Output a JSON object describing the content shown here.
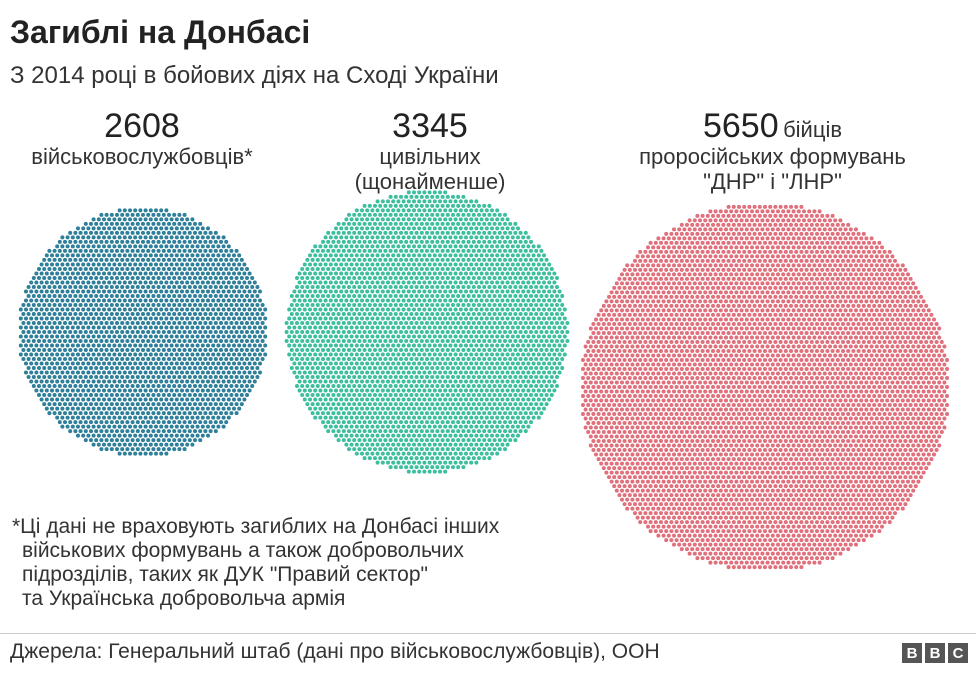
{
  "header": {
    "title": "Загиблі на Донбасі",
    "subtitle": "З 2014 році в бойових діях на Сході України"
  },
  "chart_data": {
    "type": "proportional-dot-circles",
    "series": [
      {
        "value": 2608,
        "value_text": "2608",
        "unit": "",
        "label_lines": [
          "військовослужбовців*"
        ],
        "color": "#2e7f99"
      },
      {
        "value": 3345,
        "value_text": "3345",
        "unit": "",
        "label_lines": [
          "цивільних",
          "(щонайменше)"
        ],
        "color": "#3dbf9f"
      },
      {
        "value": 5650,
        "value_text": "5650",
        "unit": "бійців",
        "label_lines": [
          "проросійських формувань",
          "\"ДНР\" і \"ЛНР\""
        ],
        "color": "#e0707c"
      }
    ]
  },
  "footnote": {
    "lines": [
      "*Ці дані не враховують загиблих на Донбасі інших",
      "військових формувань а також добровольчих",
      "підрозділів, таких як ДУК \"Правий сектор\"",
      "та Українська добровольча армія"
    ]
  },
  "footer": {
    "source": "Джерела: Генеральний штаб (дані про військовослужбовців), ООН",
    "logo_letters": [
      "B",
      "B",
      "C"
    ]
  }
}
